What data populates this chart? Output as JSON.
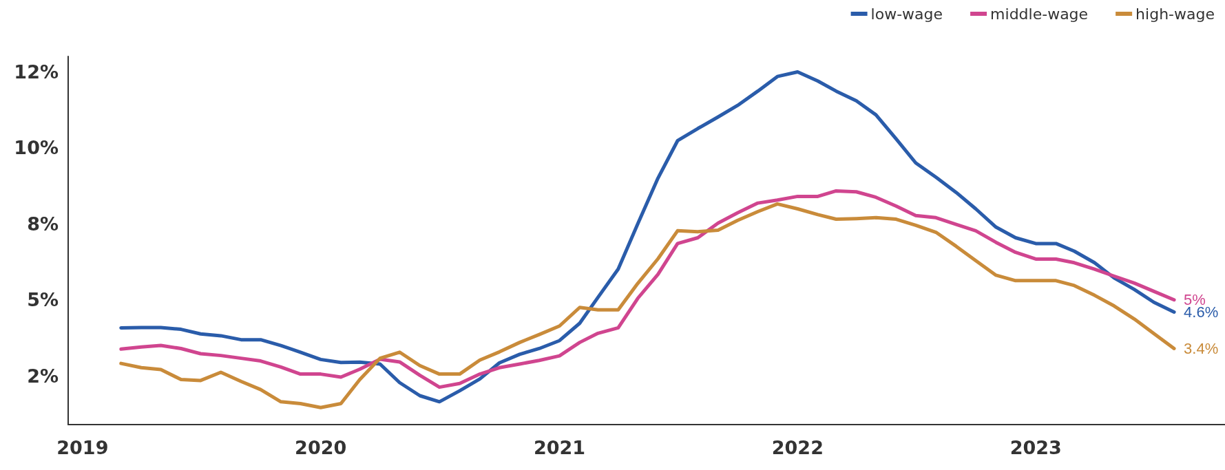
{
  "chart_data": {
    "type": "line",
    "x": [
      "2019-03",
      "2019-04",
      "2019-05",
      "2019-06",
      "2019-07",
      "2019-08",
      "2019-09",
      "2019-10",
      "2019-11",
      "2019-12",
      "2020-01",
      "2020-02",
      "2020-03",
      "2020-04",
      "2020-05",
      "2020-06",
      "2020-07",
      "2020-08",
      "2020-09",
      "2020-10",
      "2020-11",
      "2020-12",
      "2021-01",
      "2021-02",
      "2021-03",
      "2021-04",
      "2021-05",
      "2021-06",
      "2021-07",
      "2021-08",
      "2021-09",
      "2021-10",
      "2021-11",
      "2021-12",
      "2022-01",
      "2022-02",
      "2022-03",
      "2022-04",
      "2022-05",
      "2022-06",
      "2022-07",
      "2022-08",
      "2022-09",
      "2022-10",
      "2022-11",
      "2022-12",
      "2023-01",
      "2023-02",
      "2023-03",
      "2023-04",
      "2023-05",
      "2023-06",
      "2023-07",
      "2023-08"
    ],
    "series": [
      {
        "name": "low-wage",
        "color": "#2a5caa",
        "values": [
          4.08,
          4.09,
          4.09,
          4.03,
          3.88,
          3.82,
          3.69,
          3.69,
          3.5,
          3.28,
          3.04,
          2.94,
          2.95,
          2.89,
          2.28,
          1.85,
          1.65,
          2.01,
          2.4,
          2.93,
          3.21,
          3.4,
          3.66,
          4.23,
          5.08,
          6.01,
          7.5,
          9.0,
          10.23,
          10.63,
          11.01,
          11.39,
          11.86,
          12.34,
          12.49,
          12.19,
          11.86,
          11.54,
          11.08,
          10.29,
          9.5,
          9.03,
          8.53,
          7.99,
          7.39,
          7.04,
          6.85,
          6.85,
          6.6,
          6.22,
          5.72,
          5.34,
          4.92,
          4.6
        ],
        "value_labels": [
          null,
          null,
          null,
          null,
          null,
          null,
          null,
          null,
          null,
          null,
          null,
          null,
          null,
          null,
          null,
          null,
          null,
          null,
          null,
          null,
          null,
          null,
          null,
          null,
          null,
          null,
          null,
          null,
          null,
          null,
          null,
          null,
          null,
          null,
          null,
          null,
          null,
          null,
          null,
          null,
          null,
          null,
          null,
          null,
          null,
          null,
          null,
          null,
          null,
          null,
          null,
          null,
          null,
          "4.6%"
        ]
      },
      {
        "name": "middle-wage",
        "color": "#d0458f",
        "values": [
          3.38,
          3.45,
          3.5,
          3.4,
          3.23,
          3.17,
          3.08,
          2.99,
          2.79,
          2.56,
          2.56,
          2.46,
          2.72,
          3.05,
          2.96,
          2.52,
          2.13,
          2.25,
          2.56,
          2.77,
          2.89,
          3.01,
          3.16,
          3.6,
          3.9,
          4.08,
          5.05,
          5.84,
          6.85,
          7.04,
          7.52,
          7.86,
          8.18,
          8.28,
          8.4,
          8.4,
          8.58,
          8.55,
          8.37,
          8.08,
          7.77,
          7.7,
          7.48,
          7.27,
          6.89,
          6.56,
          6.34,
          6.34,
          6.22,
          6.01,
          5.78,
          5.55,
          5.28,
          5.0
        ],
        "value_labels": [
          null,
          null,
          null,
          null,
          null,
          null,
          null,
          null,
          null,
          null,
          null,
          null,
          null,
          null,
          null,
          null,
          null,
          null,
          null,
          null,
          null,
          null,
          null,
          null,
          null,
          null,
          null,
          null,
          null,
          null,
          null,
          null,
          null,
          null,
          null,
          null,
          null,
          null,
          null,
          null,
          null,
          null,
          null,
          null,
          null,
          null,
          null,
          null,
          null,
          null,
          null,
          null,
          null,
          "5%"
        ]
      },
      {
        "name": "high-wage",
        "color": "#c98b3a",
        "values": [
          2.91,
          2.77,
          2.71,
          2.38,
          2.35,
          2.62,
          2.32,
          2.05,
          1.65,
          1.59,
          1.46,
          1.59,
          2.38,
          3.08,
          3.28,
          2.84,
          2.56,
          2.56,
          3.02,
          3.29,
          3.6,
          3.86,
          4.14,
          4.75,
          4.67,
          4.67,
          5.54,
          6.35,
          7.27,
          7.24,
          7.29,
          7.61,
          7.9,
          8.15,
          7.99,
          7.8,
          7.65,
          7.67,
          7.7,
          7.65,
          7.45,
          7.22,
          6.76,
          6.29,
          5.81,
          5.63,
          5.63,
          5.63,
          5.47,
          5.15,
          4.8,
          4.37,
          3.89,
          3.4
        ],
        "value_labels": [
          null,
          null,
          null,
          null,
          null,
          null,
          null,
          null,
          null,
          null,
          null,
          null,
          null,
          null,
          null,
          null,
          null,
          null,
          null,
          null,
          null,
          null,
          null,
          null,
          null,
          null,
          null,
          null,
          null,
          null,
          null,
          null,
          null,
          null,
          null,
          null,
          null,
          null,
          null,
          null,
          null,
          null,
          null,
          null,
          null,
          null,
          null,
          null,
          null,
          null,
          null,
          null,
          null,
          "3.4%"
        ]
      }
    ],
    "xlim": [
      "2018-12-10",
      "2023-10-18"
    ],
    "xticks": [
      "2019",
      "2020",
      "2021",
      "2022",
      "2023"
    ],
    "ylim": [
      0.9,
      13
    ],
    "yticks": [
      {
        "value": 2.5,
        "label": "2%"
      },
      {
        "value": 5,
        "label": "5%"
      },
      {
        "value": 7.5,
        "label": "8%"
      },
      {
        "value": 10,
        "label": "10%"
      },
      {
        "value": 12.5,
        "label": "12%"
      }
    ],
    "legend": "top right",
    "grid": false,
    "marker": "none",
    "line_style": "solid"
  }
}
